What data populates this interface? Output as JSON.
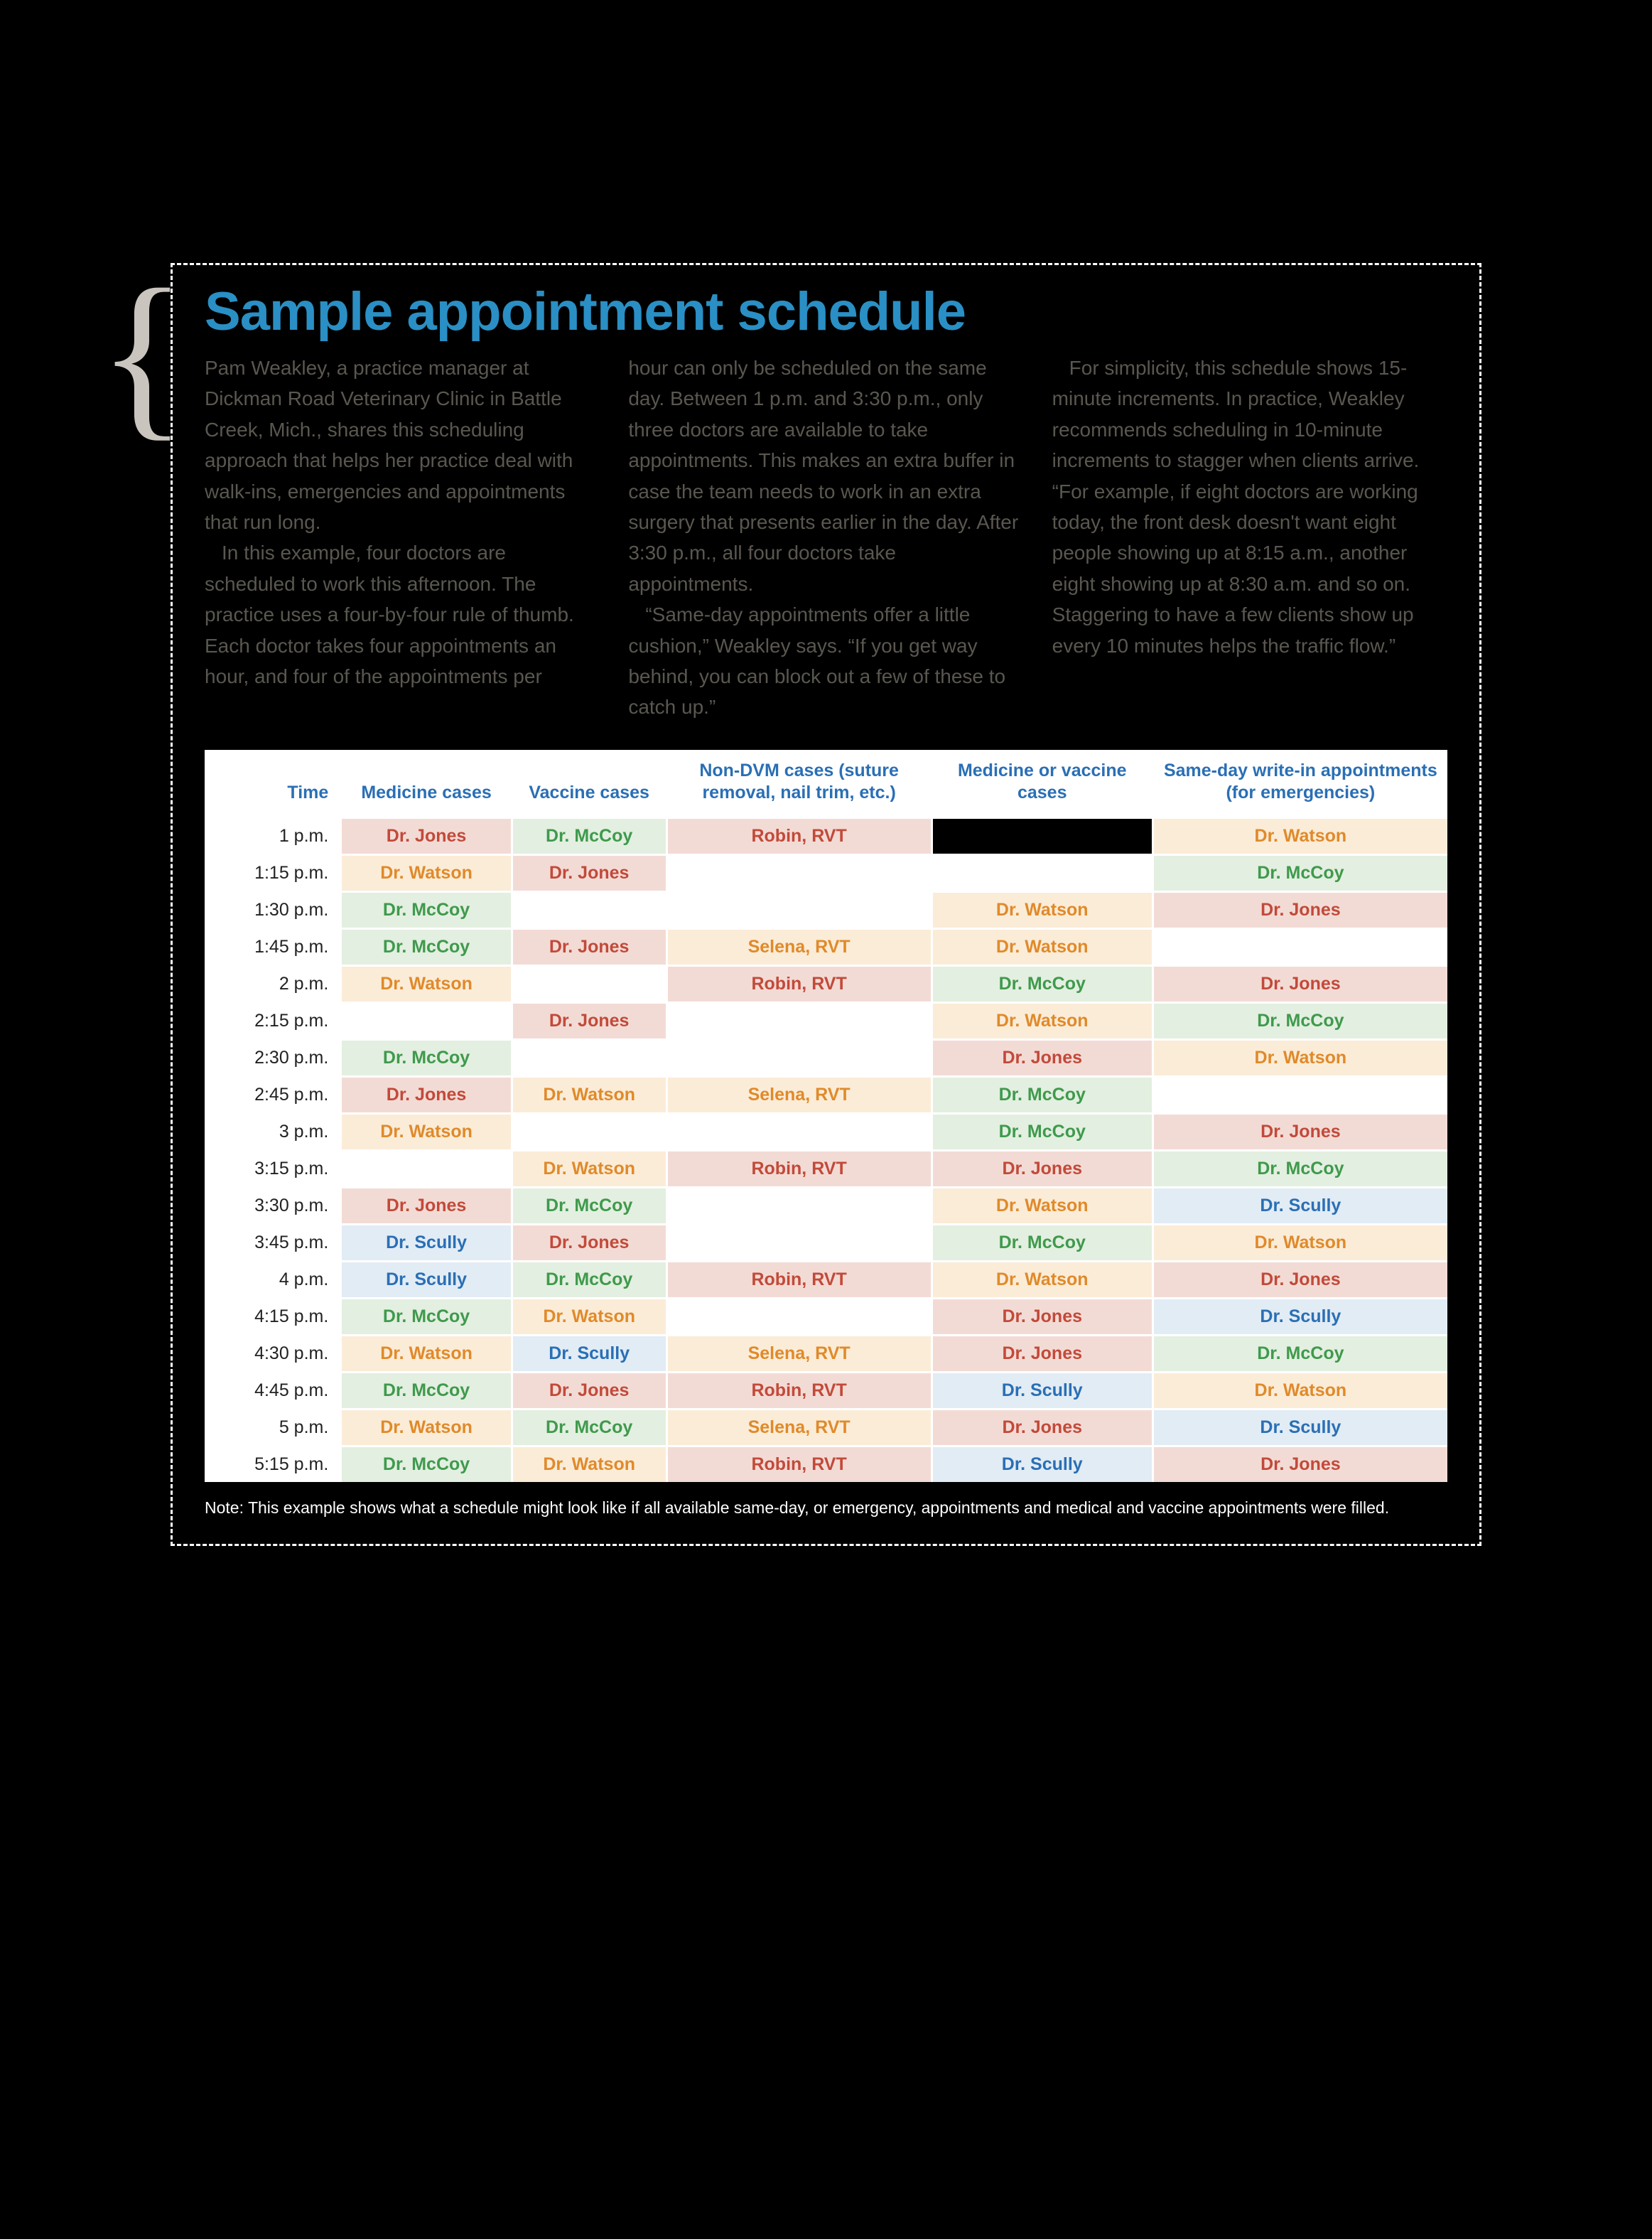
{
  "title": "Sample appointment schedule",
  "body": {
    "col1": [
      "Pam Weakley, a practice manager at Dickman Road Veterinary Clinic in Battle Creek, Mich., shares this scheduling approach that helps her practice deal with walk-ins, emergencies and appointments that run long.",
      "In this example, four doctors are scheduled to work this afternoon. The practice uses a four-by-four rule of thumb. Each doctor takes four appointments an hour, and four of the appointments per"
    ],
    "col2": [
      "hour can only be scheduled on the same day. Between 1 p.m. and 3:30 p.m., only three doctors are available to take appointments. This makes an extra buffer in case the team needs to work in an extra surgery that presents earlier in the day. After 3:30 p.m., all four doctors take appointments.",
      "“Same-day appointments offer a little cushion,” Weakley says. “If you get way behind, you can block out a few of these to catch up.”"
    ],
    "col3": [
      "For simplicity, this schedule shows 15-minute increments. In practice, Weakley recommends scheduling in 10-minute increments to stagger when clients arrive. “For example, if eight doctors are working today, the front desk doesn't want eight people showing up at 8:15 a.m., another eight showing up at 8:30 a.m. and so on. Staggering to have a few clients show up every 10 minutes helps the traffic flow.”"
    ]
  },
  "table": {
    "columns": [
      {
        "key": "time",
        "label": "Time",
        "class": "c-time"
      },
      {
        "key": "med",
        "label": "Medicine cases",
        "class": "c-med"
      },
      {
        "key": "vac",
        "label": "Vaccine cases",
        "class": "c-vac"
      },
      {
        "key": "non",
        "label": "Non-DVM cases (suture removal, nail trim, etc.)",
        "class": "c-non"
      },
      {
        "key": "mv",
        "label": "Medicine or vaccine cases",
        "class": "c-mv"
      },
      {
        "key": "same",
        "label": "Same-day write-in appointments (for emergencies)",
        "class": "c-same"
      }
    ],
    "doctors": {
      "jones": {
        "label": "Dr. Jones",
        "text": "#c24a3a",
        "bg": "#f3dbd5"
      },
      "watson": {
        "label": "Dr. Watson",
        "text": "#e08a2a",
        "bg": "#fbecd8"
      },
      "mccoy": {
        "label": "Dr. McCoy",
        "text": "#3f9a4d",
        "bg": "#e3efe0"
      },
      "scully": {
        "label": "Dr. Scully",
        "text": "#2a6fb5",
        "bg": "#e2ecf5"
      },
      "robin": {
        "label": "Robin, RVT",
        "text": "#c24a3a",
        "bg": "#f3dbd5"
      },
      "selena": {
        "label": "Selena, RVT",
        "text": "#e08a2a",
        "bg": "#fbecd8"
      },
      "black": {
        "label": "",
        "text": "#000000",
        "bg": "#000000"
      },
      "blank": {
        "label": "",
        "text": "#000000",
        "bg": "#ffffff"
      }
    },
    "rows": [
      {
        "time": "1 p.m.",
        "cells": [
          "jones",
          "mccoy",
          "robin",
          "black",
          "watson"
        ]
      },
      {
        "time": "1:15 p.m.",
        "cells": [
          "watson",
          "jones",
          "blank",
          "blank",
          "mccoy"
        ]
      },
      {
        "time": "1:30 p.m.",
        "cells": [
          "mccoy",
          "blank",
          "blank",
          "watson",
          "jones"
        ]
      },
      {
        "time": "1:45 p.m.",
        "cells": [
          "mccoy",
          "jones",
          "selena",
          "watson",
          "blank"
        ]
      },
      {
        "time": "2 p.m.",
        "cells": [
          "watson",
          "blank",
          "robin",
          "mccoy",
          "jones"
        ]
      },
      {
        "time": "2:15 p.m.",
        "cells": [
          "blank",
          "jones",
          "blank",
          "watson",
          "mccoy"
        ]
      },
      {
        "time": "2:30 p.m.",
        "cells": [
          "mccoy",
          "blank",
          "blank",
          "jones",
          "watson"
        ]
      },
      {
        "time": "2:45 p.m.",
        "cells": [
          "jones",
          "watson",
          "selena",
          "mccoy",
          "blank"
        ]
      },
      {
        "time": "3 p.m.",
        "cells": [
          "watson",
          "blank",
          "blank",
          "mccoy",
          "jones"
        ]
      },
      {
        "time": "3:15 p.m.",
        "cells": [
          "blank",
          "watson",
          "robin",
          "jones",
          "mccoy"
        ]
      },
      {
        "time": "3:30 p.m.",
        "cells": [
          "jones",
          "mccoy",
          "blank",
          "watson",
          "scully"
        ]
      },
      {
        "time": "3:45 p.m.",
        "cells": [
          "scully",
          "jones",
          "blank",
          "mccoy",
          "watson"
        ]
      },
      {
        "time": "4 p.m.",
        "cells": [
          "scully",
          "mccoy",
          "robin",
          "watson",
          "jones"
        ]
      },
      {
        "time": "4:15 p.m.",
        "cells": [
          "mccoy",
          "watson",
          "blank",
          "jones",
          "scully"
        ]
      },
      {
        "time": "4:30 p.m.",
        "cells": [
          "watson",
          "scully",
          "selena",
          "jones",
          "mccoy"
        ]
      },
      {
        "time": "4:45 p.m.",
        "cells": [
          "mccoy",
          "jones",
          "robin",
          "scully",
          "watson"
        ]
      },
      {
        "time": "5 p.m.",
        "cells": [
          "watson",
          "mccoy",
          "selena",
          "jones",
          "scully"
        ]
      },
      {
        "time": "5:15 p.m.",
        "cells": [
          "mccoy",
          "watson",
          "robin",
          "scully",
          "jones"
        ]
      }
    ]
  },
  "note": "Note: This example shows what a schedule might look like if all available same-day, or emergency, appointments and medical and vaccine appointments were filled."
}
